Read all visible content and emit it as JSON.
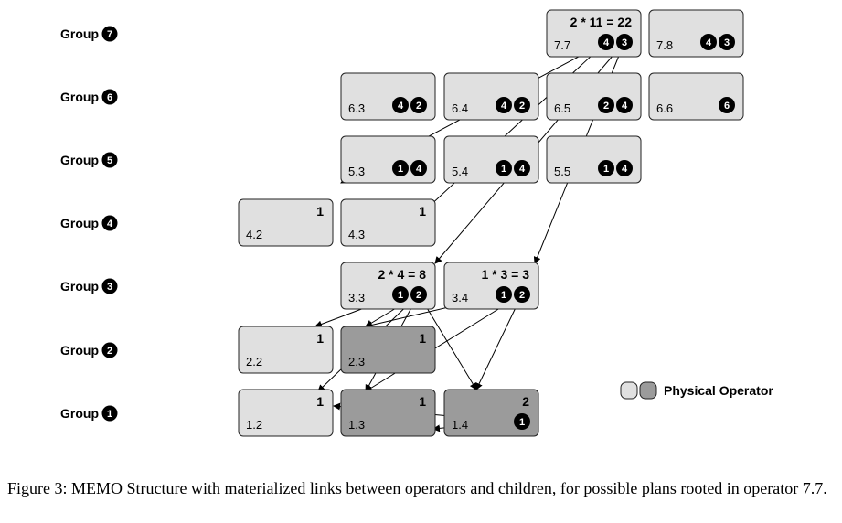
{
  "groups": [
    {
      "label": "Group",
      "num": "7"
    },
    {
      "label": "Group",
      "num": "6"
    },
    {
      "label": "Group",
      "num": "5"
    },
    {
      "label": "Group",
      "num": "4"
    },
    {
      "label": "Group",
      "num": "3"
    },
    {
      "label": "Group",
      "num": "2"
    },
    {
      "label": "Group",
      "num": "1"
    }
  ],
  "operators": [
    {
      "id": "7.7",
      "expr": "2 * 11 = 22",
      "children": [
        "4",
        "3"
      ],
      "physical": false
    },
    {
      "id": "7.8",
      "expr": "",
      "children": [
        "4",
        "3"
      ],
      "physical": false
    },
    {
      "id": "6.3",
      "expr": "",
      "children": [
        "4",
        "2"
      ],
      "physical": false
    },
    {
      "id": "6.4",
      "expr": "",
      "children": [
        "4",
        "2"
      ],
      "physical": false
    },
    {
      "id": "6.5",
      "expr": "",
      "children": [
        "2",
        "4"
      ],
      "physical": false
    },
    {
      "id": "6.6",
      "expr": "",
      "children": [
        "6"
      ],
      "physical": false
    },
    {
      "id": "5.3",
      "expr": "",
      "children": [
        "1",
        "4"
      ],
      "physical": false
    },
    {
      "id": "5.4",
      "expr": "",
      "children": [
        "1",
        "4"
      ],
      "physical": false
    },
    {
      "id": "5.5",
      "expr": "",
      "children": [
        "1",
        "4"
      ],
      "physical": false
    },
    {
      "id": "4.2",
      "expr": "1",
      "children": [],
      "physical": false
    },
    {
      "id": "4.3",
      "expr": "1",
      "children": [],
      "physical": false
    },
    {
      "id": "3.3",
      "expr": "2 * 4 = 8",
      "children": [
        "1",
        "2"
      ],
      "physical": false
    },
    {
      "id": "3.4",
      "expr": "1 * 3 = 3",
      "children": [
        "1",
        "2"
      ],
      "physical": false
    },
    {
      "id": "2.2",
      "expr": "1",
      "children": [],
      "physical": false
    },
    {
      "id": "2.3",
      "expr": "1",
      "children": [],
      "physical": true
    },
    {
      "id": "1.2",
      "expr": "1",
      "children": [],
      "physical": false
    },
    {
      "id": "1.3",
      "expr": "1",
      "children": [],
      "physical": true
    },
    {
      "id": "1.4",
      "expr": "2",
      "children": [
        "1"
      ],
      "physical": true
    }
  ],
  "links": [
    {
      "from": "7.7",
      "to": "5.3"
    },
    {
      "from": "7.7",
      "to": "4.3"
    },
    {
      "from": "7.7",
      "to": "3.3"
    },
    {
      "from": "7.7",
      "to": "3.4"
    },
    {
      "from": "3.3",
      "to": "2.2"
    },
    {
      "from": "3.3",
      "to": "2.3"
    },
    {
      "from": "3.3",
      "to": "1.2"
    },
    {
      "from": "3.3",
      "to": "1.3"
    },
    {
      "from": "3.3",
      "to": "1.4"
    },
    {
      "from": "3.4",
      "to": "2.3"
    },
    {
      "from": "3.4",
      "to": "1.3"
    },
    {
      "from": "3.4",
      "to": "1.4"
    },
    {
      "from": "1.4",
      "to": "1.2"
    },
    {
      "from": "1.4",
      "to": "1.3"
    }
  ],
  "legend": {
    "label": "Physical Operator"
  },
  "caption": "Figure 3: MEMO Structure with materialized links between operators and children, for possible plans rooted in operator 7.7.",
  "colors": {
    "logical": "#e0e0e0",
    "physical": "#9b9b9b",
    "border": "#222222",
    "badge": "#000000"
  }
}
